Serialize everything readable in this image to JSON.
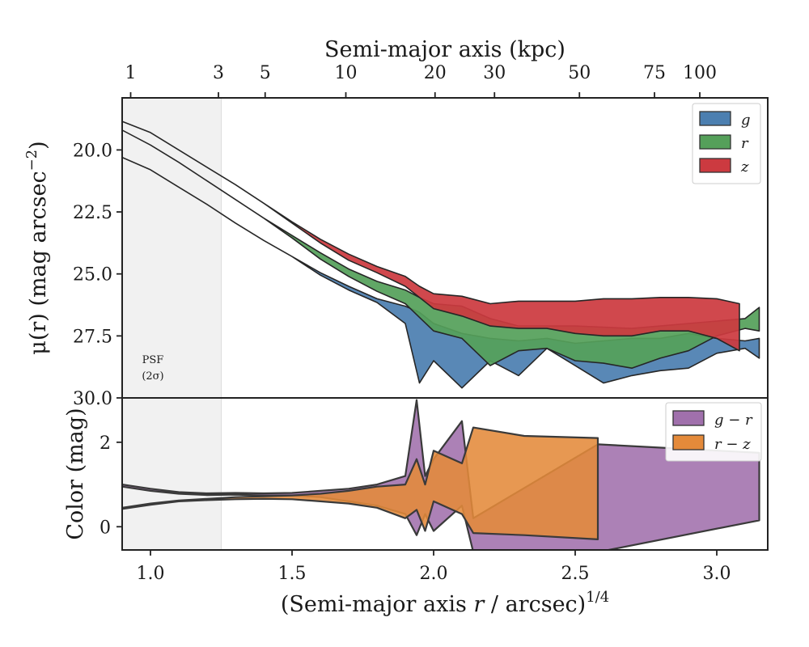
{
  "chart_data": [
    {
      "type": "area",
      "panel": "surface-brightness",
      "ylabel": "μ(r) (mag arcsec⁻²)",
      "ylabel_main": "μ(r) (mag arcsec",
      "ylabel_exp": "−2",
      "ylabel_close": ")",
      "ylim": [
        30.0,
        17.9
      ],
      "yticks": [
        20.0,
        22.5,
        25.0,
        27.5,
        30.0
      ],
      "ytick_labels": [
        "20.0",
        "22.5",
        "25.0",
        "27.5",
        "30.0"
      ],
      "xlim": [
        0.9,
        3.18
      ],
      "top_axis": {
        "label": "Semi-major axis (kpc)",
        "ticks": [
          1,
          3,
          5,
          10,
          20,
          30,
          50,
          75,
          100
        ],
        "tick_labels": [
          "1",
          "3",
          "5",
          "10",
          "20",
          "30",
          "50",
          "75",
          "100"
        ],
        "tick_positions_x14": [
          0.93,
          1.24,
          1.405,
          1.69,
          2.005,
          2.215,
          2.515,
          2.78,
          2.94
        ]
      },
      "psf": {
        "label": "PSF",
        "sublabel": "(2σ)",
        "x_max": 1.25
      },
      "series": [
        {
          "name": "g",
          "color": "#4c7fb0",
          "upper": [
            [
              0.9,
              20.3
            ],
            [
              1.0,
              20.8
            ],
            [
              1.1,
              21.5
            ],
            [
              1.2,
              22.2
            ],
            [
              1.3,
              22.95
            ],
            [
              1.4,
              23.65
            ],
            [
              1.5,
              24.3
            ],
            [
              1.6,
              24.95
            ],
            [
              1.7,
              25.5
            ],
            [
              1.8,
              26.0
            ],
            [
              1.9,
              26.3
            ],
            [
              1.95,
              26.55
            ],
            [
              2.0,
              27.0
            ],
            [
              2.1,
              27.4
            ],
            [
              2.2,
              27.6
            ],
            [
              2.3,
              27.7
            ],
            [
              2.4,
              27.6
            ],
            [
              2.5,
              27.8
            ],
            [
              2.6,
              27.7
            ],
            [
              2.7,
              27.6
            ],
            [
              2.8,
              27.6
            ],
            [
              2.9,
              27.4
            ],
            [
              3.0,
              27.6
            ],
            [
              3.1,
              27.7
            ],
            [
              3.15,
              27.6
            ]
          ],
          "lower": [
            [
              0.9,
              20.3
            ],
            [
              1.0,
              20.8
            ],
            [
              1.1,
              21.5
            ],
            [
              1.2,
              22.2
            ],
            [
              1.3,
              22.95
            ],
            [
              1.4,
              23.65
            ],
            [
              1.5,
              24.3
            ],
            [
              1.6,
              25.05
            ],
            [
              1.7,
              25.65
            ],
            [
              1.8,
              26.15
            ],
            [
              1.9,
              27.0
            ],
            [
              1.95,
              29.4
            ],
            [
              2.0,
              28.5
            ],
            [
              2.1,
              29.6
            ],
            [
              2.2,
              28.5
            ],
            [
              2.3,
              29.1
            ],
            [
              2.4,
              28.0
            ],
            [
              2.5,
              28.7
            ],
            [
              2.6,
              29.4
            ],
            [
              2.7,
              29.1
            ],
            [
              2.8,
              28.9
            ],
            [
              2.9,
              28.8
            ],
            [
              3.0,
              28.2
            ],
            [
              3.1,
              28.0
            ],
            [
              3.15,
              28.4
            ]
          ]
        },
        {
          "name": "r",
          "color": "#55a05a",
          "upper": [
            [
              0.9,
              19.2
            ],
            [
              1.0,
              19.8
            ],
            [
              1.1,
              20.5
            ],
            [
              1.2,
              21.25
            ],
            [
              1.3,
              22.0
            ],
            [
              1.4,
              22.75
            ],
            [
              1.5,
              23.45
            ],
            [
              1.6,
              24.15
            ],
            [
              1.7,
              24.8
            ],
            [
              1.8,
              25.3
            ],
            [
              1.9,
              25.65
            ],
            [
              1.95,
              25.95
            ],
            [
              2.0,
              26.2
            ],
            [
              2.1,
              26.3
            ],
            [
              2.2,
              26.8
            ],
            [
              2.3,
              27.1
            ],
            [
              2.4,
              27.1
            ],
            [
              2.5,
              27.1
            ],
            [
              2.6,
              27.15
            ],
            [
              2.7,
              27.2
            ],
            [
              2.8,
              27.1
            ],
            [
              2.9,
              27.0
            ],
            [
              3.0,
              26.9
            ],
            [
              3.1,
              26.8
            ],
            [
              3.15,
              26.35
            ]
          ],
          "lower": [
            [
              0.9,
              19.2
            ],
            [
              1.0,
              19.8
            ],
            [
              1.1,
              20.5
            ],
            [
              1.2,
              21.25
            ],
            [
              1.3,
              22.0
            ],
            [
              1.4,
              22.75
            ],
            [
              1.5,
              23.55
            ],
            [
              1.6,
              24.4
            ],
            [
              1.7,
              25.1
            ],
            [
              1.8,
              25.7
            ],
            [
              1.9,
              26.2
            ],
            [
              1.95,
              26.75
            ],
            [
              2.0,
              27.3
            ],
            [
              2.1,
              27.6
            ],
            [
              2.2,
              28.7
            ],
            [
              2.3,
              28.1
            ],
            [
              2.4,
              28.0
            ],
            [
              2.5,
              28.5
            ],
            [
              2.6,
              28.6
            ],
            [
              2.7,
              28.8
            ],
            [
              2.8,
              28.4
            ],
            [
              2.9,
              28.1
            ],
            [
              3.0,
              27.5
            ],
            [
              3.1,
              27.2
            ],
            [
              3.15,
              27.3
            ]
          ]
        },
        {
          "name": "z",
          "color": "#cc3a40",
          "upper": [
            [
              0.9,
              18.85
            ],
            [
              1.0,
              19.3
            ],
            [
              1.1,
              20.0
            ],
            [
              1.2,
              20.7
            ],
            [
              1.3,
              21.4
            ],
            [
              1.4,
              22.15
            ],
            [
              1.5,
              22.9
            ],
            [
              1.6,
              23.6
            ],
            [
              1.7,
              24.2
            ],
            [
              1.8,
              24.7
            ],
            [
              1.9,
              25.1
            ],
            [
              1.95,
              25.5
            ],
            [
              2.0,
              25.8
            ],
            [
              2.1,
              25.9
            ],
            [
              2.2,
              26.2
            ],
            [
              2.3,
              26.1
            ],
            [
              2.4,
              26.1
            ],
            [
              2.5,
              26.1
            ],
            [
              2.6,
              26.0
            ],
            [
              2.7,
              26.0
            ],
            [
              2.8,
              25.95
            ],
            [
              2.9,
              25.95
            ],
            [
              3.0,
              26.0
            ],
            [
              3.08,
              26.2
            ]
          ],
          "lower": [
            [
              0.9,
              18.85
            ],
            [
              1.0,
              19.3
            ],
            [
              1.1,
              20.0
            ],
            [
              1.2,
              20.7
            ],
            [
              1.3,
              21.4
            ],
            [
              1.4,
              22.15
            ],
            [
              1.5,
              22.95
            ],
            [
              1.6,
              23.75
            ],
            [
              1.7,
              24.45
            ],
            [
              1.8,
              24.95
            ],
            [
              1.9,
              25.5
            ],
            [
              1.95,
              25.95
            ],
            [
              2.0,
              26.4
            ],
            [
              2.1,
              26.7
            ],
            [
              2.2,
              27.1
            ],
            [
              2.3,
              27.2
            ],
            [
              2.4,
              27.2
            ],
            [
              2.5,
              27.4
            ],
            [
              2.6,
              27.5
            ],
            [
              2.7,
              27.5
            ],
            [
              2.8,
              27.3
            ],
            [
              2.9,
              27.3
            ],
            [
              3.0,
              27.6
            ],
            [
              3.08,
              28.1
            ]
          ]
        }
      ],
      "legend": {
        "placement": "top-right",
        "entries": [
          "g",
          "r",
          "z"
        ]
      }
    },
    {
      "type": "area",
      "panel": "color",
      "ylabel": "Color (mag)",
      "xlabel": "(Semi-major axis r / arcsec)¹ᐟ⁴",
      "xlabel_pre": "(Semi-major axis ",
      "xlabel_var": "r",
      "xlabel_post": " / arcsec)",
      "xlabel_exp": "1/4",
      "xlim": [
        0.9,
        3.18
      ],
      "xticks": [
        1.0,
        1.5,
        2.0,
        2.5,
        3.0
      ],
      "xtick_labels": [
        "1.0",
        "1.5",
        "2.0",
        "2.5",
        "3.0"
      ],
      "ylim": [
        -0.55,
        3.05
      ],
      "yticks": [
        0,
        2
      ],
      "ytick_labels": [
        "0",
        "2"
      ],
      "series": [
        {
          "name": "g − r",
          "color": "#a070ac",
          "upper": [
            [
              0.9,
              1.0
            ],
            [
              1.0,
              0.9
            ],
            [
              1.1,
              0.82
            ],
            [
              1.2,
              0.79
            ],
            [
              1.3,
              0.8
            ],
            [
              1.4,
              0.79
            ],
            [
              1.5,
              0.8
            ],
            [
              1.6,
              0.85
            ],
            [
              1.7,
              0.9
            ],
            [
              1.8,
              1.0
            ],
            [
              1.9,
              1.2
            ],
            [
              1.94,
              3.0
            ],
            [
              1.97,
              1.2
            ],
            [
              2.0,
              1.6
            ],
            [
              2.1,
              2.5
            ],
            [
              2.14,
              0.2
            ],
            [
              2.58,
              1.95
            ],
            [
              3.15,
              1.75
            ]
          ],
          "lower": [
            [
              0.9,
              0.95
            ],
            [
              1.0,
              0.85
            ],
            [
              1.1,
              0.78
            ],
            [
              1.2,
              0.75
            ],
            [
              1.3,
              0.76
            ],
            [
              1.4,
              0.74
            ],
            [
              1.5,
              0.74
            ],
            [
              1.6,
              0.7
            ],
            [
              1.7,
              0.6
            ],
            [
              1.8,
              0.5
            ],
            [
              1.9,
              0.3
            ],
            [
              1.94,
              -0.2
            ],
            [
              1.97,
              0.3
            ],
            [
              2.0,
              -0.1
            ],
            [
              2.1,
              0.5
            ],
            [
              2.14,
              -0.6
            ],
            [
              2.58,
              -0.6
            ],
            [
              3.15,
              0.15
            ]
          ]
        },
        {
          "name": "r − z",
          "color": "#e48a3a",
          "upper": [
            [
              0.9,
              0.45
            ],
            [
              1.0,
              0.55
            ],
            [
              1.1,
              0.62
            ],
            [
              1.2,
              0.66
            ],
            [
              1.3,
              0.7
            ],
            [
              1.4,
              0.72
            ],
            [
              1.5,
              0.74
            ],
            [
              1.6,
              0.78
            ],
            [
              1.7,
              0.85
            ],
            [
              1.8,
              0.95
            ],
            [
              1.9,
              1.0
            ],
            [
              1.94,
              1.6
            ],
            [
              1.97,
              1.0
            ],
            [
              2.0,
              1.8
            ],
            [
              2.1,
              1.5
            ],
            [
              2.14,
              2.35
            ],
            [
              2.32,
              2.15
            ],
            [
              2.58,
              2.1
            ]
          ],
          "lower": [
            [
              0.9,
              0.42
            ],
            [
              1.0,
              0.52
            ],
            [
              1.1,
              0.6
            ],
            [
              1.2,
              0.63
            ],
            [
              1.3,
              0.65
            ],
            [
              1.4,
              0.66
            ],
            [
              1.5,
              0.65
            ],
            [
              1.6,
              0.6
            ],
            [
              1.7,
              0.55
            ],
            [
              1.8,
              0.45
            ],
            [
              1.9,
              0.2
            ],
            [
              1.94,
              0.4
            ],
            [
              1.97,
              -0.1
            ],
            [
              2.0,
              0.6
            ],
            [
              2.1,
              0.3
            ],
            [
              2.14,
              -0.15
            ],
            [
              2.32,
              -0.2
            ],
            [
              2.58,
              -0.3
            ]
          ]
        }
      ],
      "legend": {
        "placement": "top-right",
        "entries": [
          "g − r",
          "r − z"
        ]
      }
    }
  ]
}
